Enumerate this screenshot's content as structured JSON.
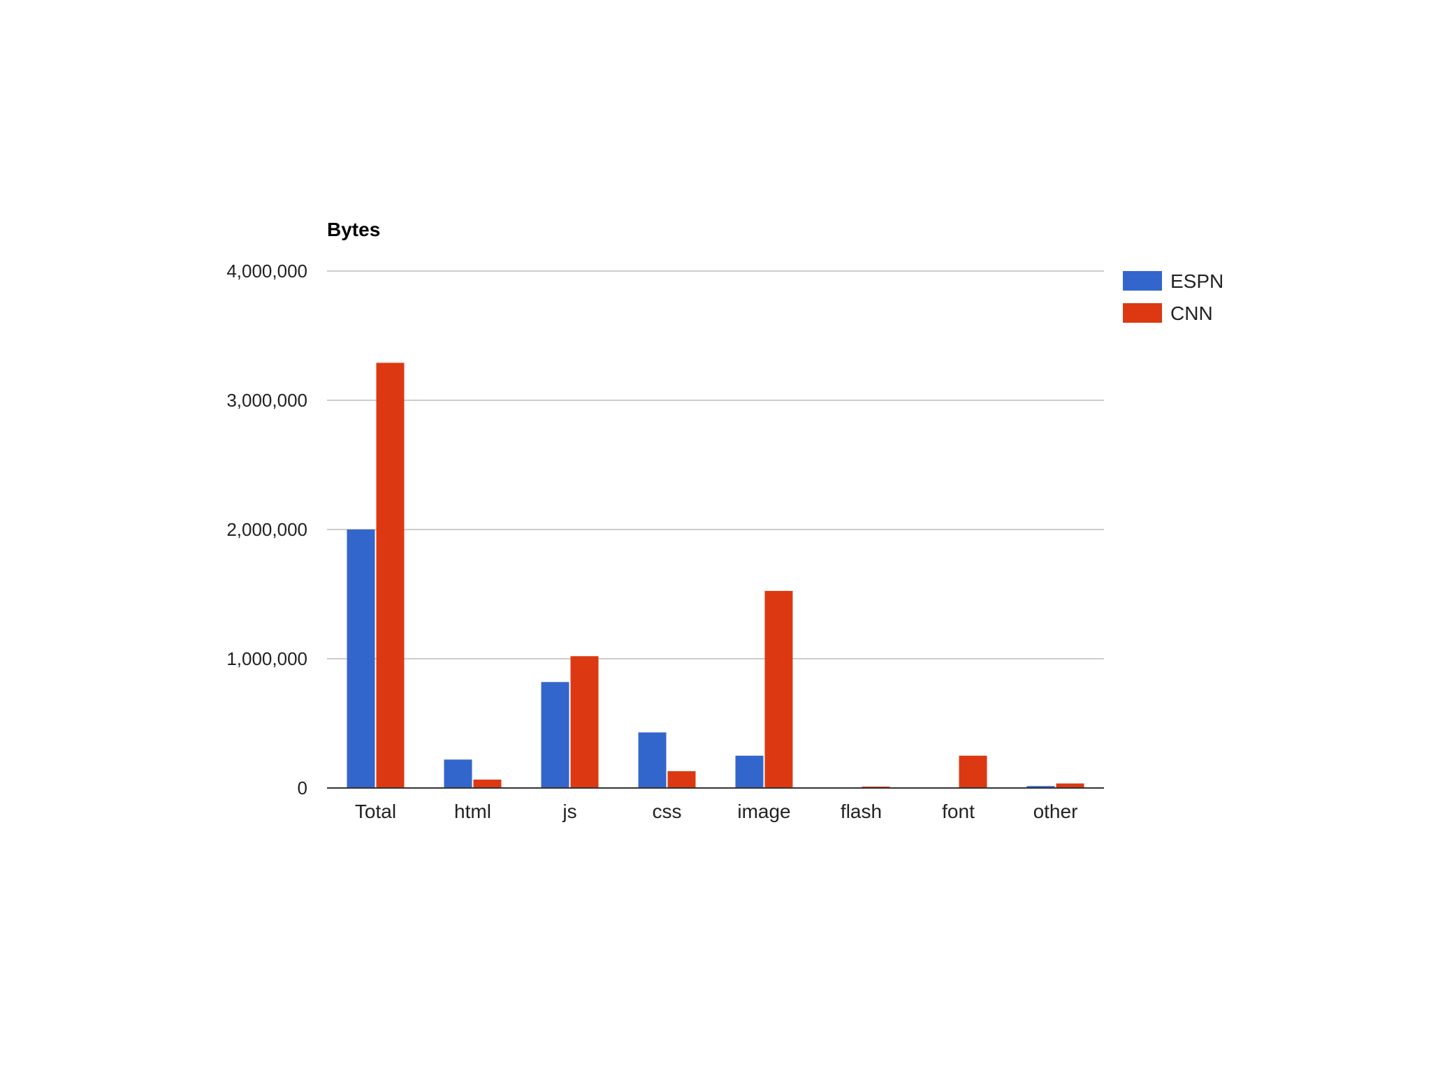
{
  "chart_data": {
    "type": "bar",
    "title": "Bytes",
    "xlabel": "",
    "ylabel": "",
    "ylim": [
      0,
      4000000
    ],
    "yticks": [
      0,
      1000000,
      2000000,
      3000000,
      4000000
    ],
    "ytick_labels": [
      "0",
      "1,000,000",
      "2,000,000",
      "3,000,000",
      "4,000,000"
    ],
    "categories": [
      "Total",
      "html",
      "js",
      "css",
      "image",
      "flash",
      "font",
      "other"
    ],
    "series": [
      {
        "name": "ESPN",
        "color": "#3366CC",
        "values": [
          2000000,
          220000,
          820000,
          430000,
          250000,
          0,
          0,
          15000
        ]
      },
      {
        "name": "CNN",
        "color": "#DC3912",
        "values": [
          3290000,
          65000,
          1020000,
          130000,
          1525000,
          10000,
          250000,
          35000
        ]
      }
    ],
    "grid": true,
    "legend_position": "right"
  }
}
